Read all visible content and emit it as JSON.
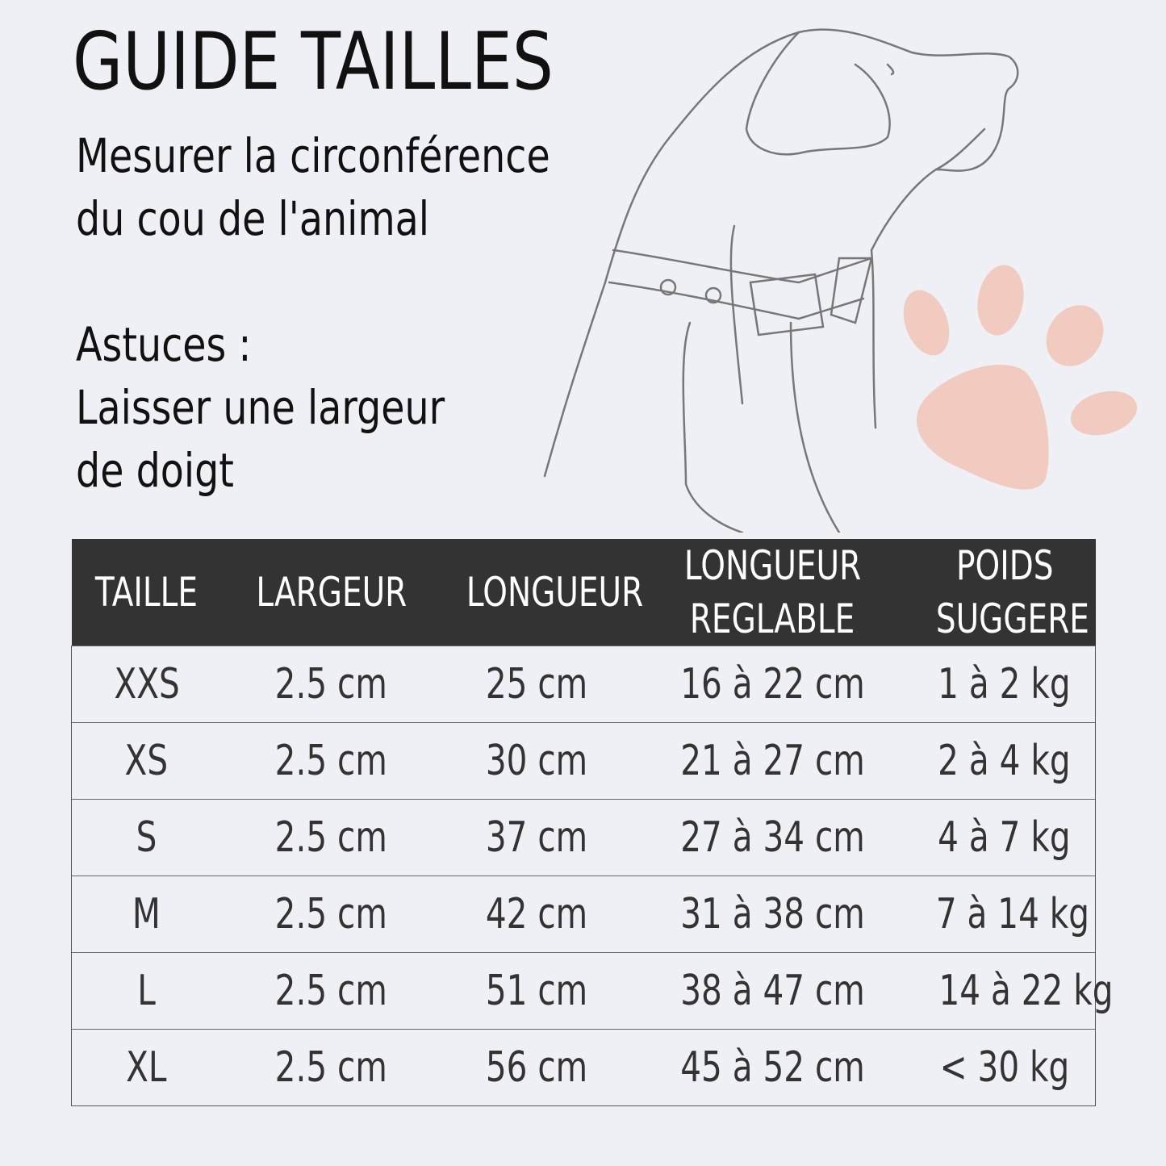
{
  "title": "GUIDE TAILLES",
  "instructions": {
    "line1": "Mesurer la circonférence",
    "line2": "du cou de l'animal"
  },
  "tips": {
    "heading": "Astuces :",
    "line1": "Laisser une largeur",
    "line2": "de doigt"
  },
  "illustration": {
    "dog": "dog-with-collar-icon",
    "paw": "paw-print-icon",
    "paw_color": "#f2cbc0"
  },
  "table": {
    "header_bg": "#333333",
    "headers": [
      {
        "line1": "TAILLE",
        "line2": ""
      },
      {
        "line1": "LARGEUR",
        "line2": ""
      },
      {
        "line1": "LONGUEUR",
        "line2": ""
      },
      {
        "line1": "LONGUEUR",
        "line2": "REGLABLE"
      },
      {
        "line1": "POIDS",
        "line2": "SUGGERE"
      }
    ],
    "rows": [
      [
        "XXS",
        "2.5 cm",
        "25 cm",
        "16 à 22 cm",
        "1 à 2 kg"
      ],
      [
        "XS",
        "2.5 cm",
        "30 cm",
        "21 à 27 cm",
        "2 à 4 kg"
      ],
      [
        "S",
        "2.5 cm",
        "37 cm",
        "27 à 34 cm",
        "4 à 7 kg"
      ],
      [
        "M",
        "2.5 cm",
        "42 cm",
        "31 à 38 cm",
        "7 à 14 kg"
      ],
      [
        "L",
        "2.5 cm",
        "51 cm",
        "38 à 47 cm",
        "14 à 22 kg"
      ],
      [
        "XL",
        "2.5 cm",
        "56 cm",
        "45 à 52 cm",
        "< 30 kg"
      ]
    ]
  }
}
